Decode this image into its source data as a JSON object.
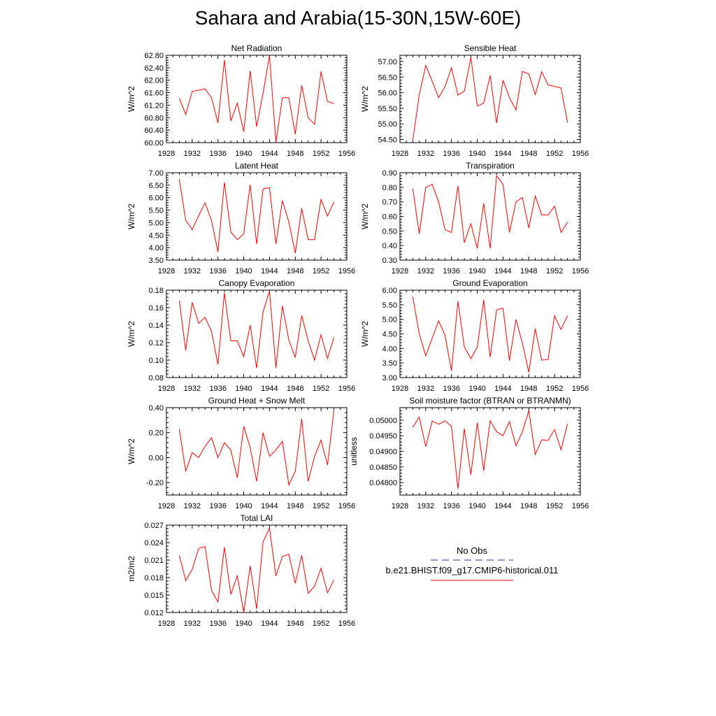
{
  "figure": {
    "title": "Sahara and Arabia(15-30N,15W-60E)",
    "legend": {
      "obs_label": "No Obs",
      "obs_color": "#2b2b9a",
      "model_label": "b.e21.BHIST.f09_g17.CMIP6-historical.011",
      "model_color": "#ff0000"
    },
    "line_color": "#ff0000"
  },
  "chart_data": [
    {
      "type": "line",
      "title": "Net Radiation",
      "ylabel": "W/m^2",
      "xlim": [
        1928,
        1956
      ],
      "xticks": [
        "1928",
        "1932",
        "1936",
        "1940",
        "1944",
        "1948",
        "1952",
        "1956"
      ],
      "ylim": [
        60.0,
        62.8
      ],
      "yticks": [
        "60.00",
        "60.40",
        "60.80",
        "61.20",
        "61.60",
        "62.00",
        "62.40",
        "62.80"
      ],
      "x": [
        1930,
        1931,
        1932,
        1933,
        1934,
        1935,
        1936,
        1937,
        1938,
        1939,
        1940,
        1941,
        1942,
        1943,
        1944,
        1945,
        1946,
        1947,
        1948,
        1949,
        1950,
        1951,
        1952,
        1953,
        1954
      ],
      "series": [
        {
          "values": [
            61.42,
            60.9,
            61.64,
            61.68,
            61.72,
            61.45,
            60.63,
            62.64,
            60.69,
            61.27,
            60.35,
            62.3,
            60.51,
            61.58,
            62.79,
            60.02,
            61.44,
            61.44,
            60.27,
            61.84,
            60.8,
            60.59,
            62.28,
            61.32,
            61.25
          ]
        }
      ]
    },
    {
      "type": "line",
      "title": "Sensible Heat",
      "ylabel": "W/m^2",
      "xlim": [
        1928,
        1956
      ],
      "xticks": [
        "1928",
        "1932",
        "1936",
        "1940",
        "1944",
        "1948",
        "1952",
        "1956"
      ],
      "ylim": [
        54.4,
        57.2
      ],
      "yticks": [
        "54.50",
        "55.00",
        "55.50",
        "56.00",
        "56.50",
        "57.00"
      ],
      "x": [
        1930,
        1931,
        1932,
        1933,
        1934,
        1935,
        1936,
        1937,
        1938,
        1939,
        1940,
        1941,
        1942,
        1943,
        1944,
        1945,
        1946,
        1947,
        1948,
        1949,
        1950,
        1951,
        1952,
        1953,
        1954
      ],
      "series": [
        {
          "values": [
            54.48,
            55.93,
            56.87,
            56.37,
            55.84,
            56.2,
            56.8,
            55.92,
            56.05,
            57.13,
            55.57,
            55.67,
            56.55,
            55.03,
            56.4,
            55.84,
            55.45,
            56.68,
            56.6,
            55.94,
            56.67,
            56.25,
            56.2,
            56.15,
            55.05
          ]
        }
      ]
    },
    {
      "type": "line",
      "title": "Latent Heat",
      "ylabel": "W/m^2",
      "xlim": [
        1928,
        1956
      ],
      "xticks": [
        "1928",
        "1932",
        "1936",
        "1940",
        "1944",
        "1948",
        "1952",
        "1956"
      ],
      "ylim": [
        3.5,
        7.0
      ],
      "yticks": [
        "3.50",
        "4.00",
        "4.50",
        "5.00",
        "5.50",
        "6.00",
        "6.50",
        "7.00"
      ],
      "x": [
        1930,
        1931,
        1932,
        1933,
        1934,
        1935,
        1936,
        1937,
        1938,
        1939,
        1940,
        1941,
        1942,
        1943,
        1944,
        1945,
        1946,
        1947,
        1948,
        1949,
        1950,
        1951,
        1952,
        1953,
        1954
      ],
      "series": [
        {
          "values": [
            6.73,
            5.1,
            4.72,
            5.28,
            5.79,
            5.08,
            3.83,
            6.61,
            4.62,
            4.32,
            4.55,
            6.52,
            4.15,
            6.35,
            6.4,
            4.15,
            5.88,
            5.03,
            3.78,
            5.57,
            4.32,
            4.32,
            5.93,
            5.26,
            5.83
          ]
        }
      ]
    },
    {
      "type": "line",
      "title": "Transpiration",
      "ylabel": "W/m^2",
      "xlim": [
        1928,
        1956
      ],
      "xticks": [
        "1928",
        "1932",
        "1936",
        "1940",
        "1944",
        "1948",
        "1952",
        "1956"
      ],
      "ylim": [
        0.3,
        0.9
      ],
      "yticks": [
        "0.30",
        "0.40",
        "0.50",
        "0.60",
        "0.70",
        "0.80",
        "0.90"
      ],
      "x": [
        1930,
        1931,
        1932,
        1933,
        1934,
        1935,
        1936,
        1937,
        1938,
        1939,
        1940,
        1941,
        1942,
        1943,
        1944,
        1945,
        1946,
        1947,
        1948,
        1949,
        1950,
        1951,
        1952,
        1953,
        1954
      ],
      "series": [
        {
          "values": [
            0.79,
            0.48,
            0.8,
            0.82,
            0.7,
            0.51,
            0.49,
            0.81,
            0.42,
            0.55,
            0.38,
            0.69,
            0.38,
            0.88,
            0.82,
            0.49,
            0.7,
            0.73,
            0.52,
            0.74,
            0.61,
            0.61,
            0.67,
            0.49,
            0.56
          ]
        }
      ]
    },
    {
      "type": "line",
      "title": "Canopy Evaporation",
      "ylabel": "W/m^2",
      "xlim": [
        1928,
        1956
      ],
      "xticks": [
        "1928",
        "1932",
        "1936",
        "1940",
        "1944",
        "1948",
        "1952",
        "1956"
      ],
      "ylim": [
        0.08,
        0.18
      ],
      "yticks": [
        "0.08",
        "0.10",
        "0.12",
        "0.14",
        "0.16",
        "0.18"
      ],
      "x": [
        1930,
        1931,
        1932,
        1933,
        1934,
        1935,
        1936,
        1937,
        1938,
        1939,
        1940,
        1941,
        1942,
        1943,
        1944,
        1945,
        1946,
        1947,
        1948,
        1949,
        1950,
        1951,
        1952,
        1953,
        1954
      ],
      "series": [
        {
          "values": [
            0.168,
            0.111,
            0.166,
            0.142,
            0.149,
            0.133,
            0.095,
            0.177,
            0.122,
            0.122,
            0.104,
            0.14,
            0.091,
            0.155,
            0.179,
            0.091,
            0.162,
            0.123,
            0.103,
            0.151,
            0.122,
            0.1,
            0.129,
            0.102,
            0.126
          ]
        }
      ]
    },
    {
      "type": "line",
      "title": "Ground Evaporation",
      "ylabel": "W/m^2",
      "xlim": [
        1928,
        1956
      ],
      "xticks": [
        "1928",
        "1932",
        "1936",
        "1940",
        "1944",
        "1948",
        "1952",
        "1956"
      ],
      "ylim": [
        3.0,
        6.0
      ],
      "yticks": [
        "3.00",
        "3.50",
        "4.00",
        "4.50",
        "5.00",
        "5.50",
        "6.00"
      ],
      "x": [
        1930,
        1931,
        1932,
        1933,
        1934,
        1935,
        1936,
        1937,
        1938,
        1939,
        1940,
        1941,
        1942,
        1943,
        1944,
        1945,
        1946,
        1947,
        1948,
        1949,
        1950,
        1951,
        1952,
        1953,
        1954
      ],
      "series": [
        {
          "values": [
            5.77,
            4.5,
            3.75,
            4.35,
            4.95,
            4.45,
            3.23,
            5.62,
            4.05,
            3.65,
            4.05,
            5.67,
            3.7,
            5.32,
            5.38,
            3.58,
            5.0,
            4.18,
            3.18,
            4.68,
            3.6,
            3.62,
            5.12,
            4.65,
            5.13
          ]
        }
      ]
    },
    {
      "type": "line",
      "title": "Ground Heat + Snow Melt",
      "ylabel": "W/m^2",
      "xlim": [
        1928,
        1956
      ],
      "xticks": [
        "1928",
        "1932",
        "1936",
        "1940",
        "1944",
        "1948",
        "1952",
        "1956"
      ],
      "ylim": [
        -0.3,
        0.4
      ],
      "yticks": [
        "-0.20",
        "0.00",
        "0.20",
        "0.40"
      ],
      "x": [
        1930,
        1931,
        1932,
        1933,
        1934,
        1935,
        1936,
        1937,
        1938,
        1939,
        1940,
        1941,
        1942,
        1943,
        1944,
        1945,
        1946,
        1947,
        1948,
        1949,
        1950,
        1951,
        1952,
        1953,
        1954
      ],
      "series": [
        {
          "values": [
            0.23,
            -0.11,
            0.04,
            0.0,
            0.09,
            0.16,
            0.0,
            0.12,
            0.06,
            -0.16,
            0.25,
            0.08,
            -0.19,
            0.2,
            0.01,
            0.06,
            0.13,
            -0.22,
            -0.11,
            0.31,
            -0.19,
            0.01,
            0.14,
            -0.06,
            0.38
          ]
        }
      ]
    },
    {
      "type": "line",
      "title": "Soil moisture factor (BTRAN or BTRANMN)",
      "ylabel": "unitless",
      "xlim": [
        1928,
        1956
      ],
      "xticks": [
        "1928",
        "1932",
        "1936",
        "1940",
        "1944",
        "1948",
        "1952",
        "1956"
      ],
      "ylim": [
        0.0476,
        0.0504
      ],
      "yticks": [
        "0.04800",
        "0.04850",
        "0.04900",
        "0.04950",
        "0.05000"
      ],
      "x": [
        1930,
        1931,
        1932,
        1933,
        1934,
        1935,
        1936,
        1937,
        1938,
        1939,
        1940,
        1941,
        1942,
        1943,
        1944,
        1945,
        1946,
        1947,
        1948,
        1949,
        1950,
        1951,
        1952,
        1953,
        1954
      ],
      "series": [
        {
          "values": [
            0.04977,
            0.0501,
            0.04915,
            0.04997,
            0.04987,
            0.04998,
            0.0498,
            0.0478,
            0.04973,
            0.04825,
            0.04992,
            0.04838,
            0.04998,
            0.04963,
            0.0495,
            0.04995,
            0.04918,
            0.04963,
            0.0503,
            0.0489,
            0.04937,
            0.04935,
            0.0497,
            0.04905,
            0.04988
          ]
        }
      ]
    },
    {
      "type": "line",
      "title": "Total LAI",
      "ylabel": "m2/m2",
      "xlim": [
        1928,
        1956
      ],
      "xticks": [
        "1928",
        "1932",
        "1936",
        "1940",
        "1944",
        "1948",
        "1952",
        "1956"
      ],
      "ylim": [
        0.012,
        0.027
      ],
      "yticks": [
        "0.012",
        "0.015",
        "0.018",
        "0.021",
        "0.024",
        "0.027"
      ],
      "x": [
        1930,
        1931,
        1932,
        1933,
        1934,
        1935,
        1936,
        1937,
        1938,
        1939,
        1940,
        1941,
        1942,
        1943,
        1944,
        1945,
        1946,
        1947,
        1948,
        1949,
        1950,
        1951,
        1952,
        1953,
        1954
      ],
      "series": [
        {
          "values": [
            0.0218,
            0.0175,
            0.0194,
            0.023,
            0.0233,
            0.0158,
            0.0138,
            0.0232,
            0.0151,
            0.0183,
            0.012,
            0.02,
            0.0126,
            0.0241,
            0.0265,
            0.0183,
            0.0216,
            0.022,
            0.017,
            0.0218,
            0.0153,
            0.0165,
            0.0196,
            0.0154,
            0.0176
          ]
        }
      ]
    }
  ]
}
